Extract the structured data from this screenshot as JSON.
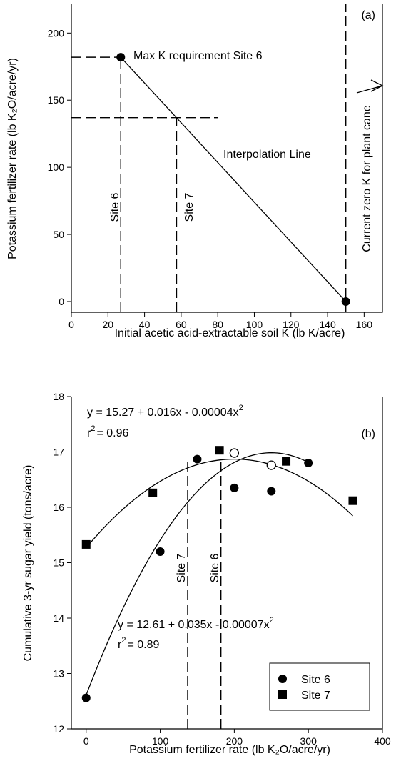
{
  "chart_data": [
    {
      "id": "a",
      "type": "line",
      "panel_label": "(a)",
      "xlabel": "Initial acetic acid-extractable soil K (lb K/acre)",
      "ylabel": "Potassium fertilizer rate (lb K₂O/acre/yr)",
      "xlim": [
        0,
        170
      ],
      "ylim": [
        -8,
        222
      ],
      "xticks": [
        0,
        20,
        40,
        60,
        80,
        100,
        120,
        140,
        160
      ],
      "yticks": [
        0,
        50,
        100,
        150,
        200
      ],
      "series": [
        {
          "x": [
            27,
            150
          ],
          "y": [
            182,
            0
          ]
        }
      ],
      "reference_lines": [
        {
          "kind": "vertical",
          "x": 27,
          "y_from": -8,
          "y_to": 182,
          "label": "Site 6"
        },
        {
          "kind": "vertical",
          "x": 57.5,
          "y_from": -8,
          "y_to": 137,
          "label": "Site 7"
        },
        {
          "kind": "horizontal",
          "y": 182,
          "x_from": 0,
          "x_to": 27
        },
        {
          "kind": "horizontal",
          "y": 137,
          "x_from": 0,
          "x_to": 80
        },
        {
          "kind": "vertical",
          "x": 150,
          "y_from": -8,
          "y_to": 222,
          "label": "Current zero K for plant cane"
        }
      ],
      "annotations": {
        "max_k": "Max K requirement Site 6",
        "interpolation": "Interpolation Line",
        "current_zero_k": "Current zero K for plant cane"
      }
    },
    {
      "id": "b",
      "type": "scatter",
      "panel_label": "(b)",
      "xlabel": "Potassium fertilizer rate (lb K₂O/acre/yr)",
      "ylabel": "Cumulative 3-yr sugar yield (tons/acre)",
      "xlim": [
        -20,
        400
      ],
      "ylim": [
        12,
        18
      ],
      "xticks": [
        0,
        100,
        200,
        300,
        400
      ],
      "yticks": [
        12,
        13,
        14,
        15,
        16,
        17,
        18
      ],
      "series": [
        {
          "name": "Site 6",
          "marker": "circle",
          "x": [
            0,
            100,
            150,
            200,
            250,
            300
          ],
          "y": [
            12.56,
            15.2,
            16.87,
            16.35,
            16.29,
            16.8
          ],
          "fit": {
            "a": 12.61,
            "b": 0.035,
            "c": -7e-05,
            "x_from": 0,
            "x_to": 295
          },
          "equation": "y = 12.61 + 0.035x - 0.00007x",
          "r2_value": "= 0.89",
          "optimum": {
            "x": 250,
            "y": 16.76
          }
        },
        {
          "name": "Site 7",
          "marker": "square",
          "x": [
            0,
            90,
            180,
            270,
            360
          ],
          "y": [
            15.33,
            16.26,
            17.03,
            16.83,
            16.12
          ],
          "fit": {
            "a": 15.27,
            "b": 0.016,
            "c": -4e-05,
            "x_from": 0,
            "x_to": 360
          },
          "equation": "y = 15.27 + 0.016x - 0.00004x",
          "r2_value": "= 0.96",
          "optimum": {
            "x": 200,
            "y": 16.98
          }
        }
      ],
      "reference_lines": [
        {
          "kind": "vertical",
          "x": 137,
          "y_from": 12,
          "y_to": 16.9,
          "label": "Site 7"
        },
        {
          "kind": "vertical",
          "x": 182,
          "y_from": 12,
          "y_to": 16.9,
          "label": "Site 6"
        }
      ],
      "legend": {
        "position": "bottom-right",
        "entries": [
          "Site 6",
          "Site 7"
        ]
      }
    }
  ]
}
